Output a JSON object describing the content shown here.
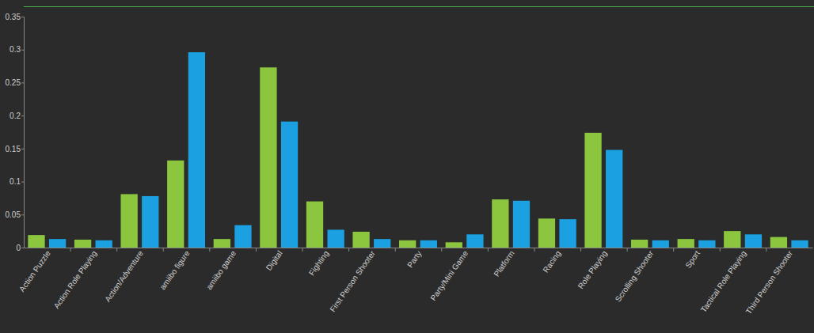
{
  "chart_data": {
    "type": "bar",
    "categories": [
      "Action Puzzle",
      "Action Role Playing",
      "Action/Adventure",
      "amiibo figure",
      "amiibo game",
      "Digital",
      "Fighting",
      "First Person Shooter",
      "Party",
      "Party/Mini Game",
      "Platform",
      "Racing",
      "Role Playing",
      "Scrolling Shooter",
      "Sport",
      "Tactical Role Playing",
      "Third Person Shooter"
    ],
    "series": [
      {
        "color": "#8cc63e",
        "values": [
          0.019,
          0.012,
          0.081,
          0.132,
          0.013,
          0.273,
          0.07,
          0.024,
          0.011,
          0.008,
          0.073,
          0.044,
          0.174,
          0.012,
          0.013,
          0.025,
          0.016
        ]
      },
      {
        "color": "#1ba0e1",
        "values": [
          0.013,
          0.011,
          0.078,
          0.296,
          0.034,
          0.191,
          0.027,
          0.013,
          0.011,
          0.02,
          0.071,
          0.043,
          0.148,
          0.011,
          0.011,
          0.02,
          0.011
        ]
      }
    ],
    "ylim": [
      0,
      0.35
    ],
    "yticks": [
      0,
      0.05,
      0.1,
      0.15,
      0.2,
      0.25,
      0.3,
      0.35
    ],
    "grid": false
  }
}
